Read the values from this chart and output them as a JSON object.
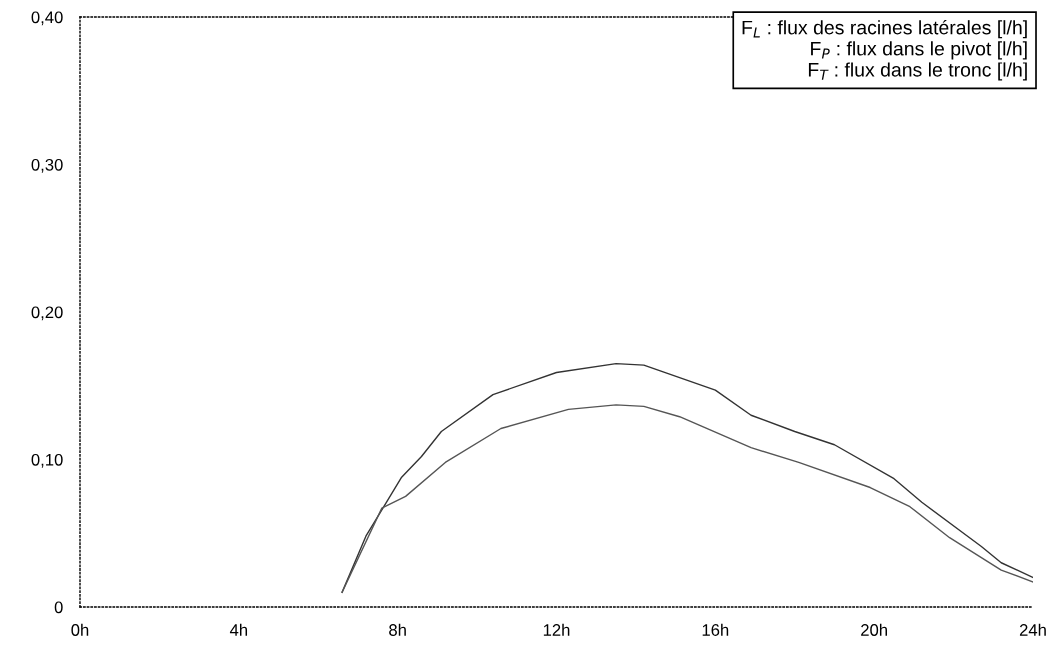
{
  "chart_data": {
    "type": "line",
    "xlim": [
      0,
      24
    ],
    "xticks": [
      {
        "value": 0,
        "label": "0h"
      },
      {
        "value": 4,
        "label": "4h"
      },
      {
        "value": 8,
        "label": "8h"
      },
      {
        "value": 12,
        "label": "12h"
      },
      {
        "value": 16,
        "label": "16h"
      },
      {
        "value": 20,
        "label": "20h"
      },
      {
        "value": 24,
        "label": "24h"
      }
    ],
    "ylim": [
      0,
      0.4
    ],
    "yticks": [
      {
        "value": 0,
        "label": "0"
      },
      {
        "value": 0.1,
        "label": "0,10"
      },
      {
        "value": 0.2,
        "label": "0,20"
      },
      {
        "value": 0.3,
        "label": "0,30"
      },
      {
        "value": 0.4,
        "label": "0,40"
      }
    ],
    "grid": false,
    "line_style": "solid",
    "marker": "none",
    "series": [
      {
        "color": "#333333",
        "x": [
          6.6,
          7.2,
          8.1,
          8.6,
          9.1,
          10.4,
          12,
          13.5,
          14.2,
          16,
          16.9,
          18,
          19,
          20.5,
          21.2,
          22.7,
          23.2,
          24
        ],
        "values": [
          0.01,
          0.048,
          0.088,
          0.102,
          0.119,
          0.144,
          0.159,
          0.165,
          0.164,
          0.147,
          0.13,
          0.119,
          0.11,
          0.087,
          0.071,
          0.041,
          0.03,
          0.02
        ]
      },
      {
        "color": "#555555",
        "x": [
          6.6,
          7.6,
          8.2,
          9.2,
          10.6,
          12.3,
          13.5,
          14.2,
          15.1,
          16.9,
          18.1,
          19.9,
          20.9,
          21.9,
          23.2,
          24
        ],
        "values": [
          0.01,
          0.067,
          0.075,
          0.098,
          0.121,
          0.134,
          0.137,
          0.136,
          0.129,
          0.108,
          0.098,
          0.081,
          0.068,
          0.047,
          0.025,
          0.017
        ]
      }
    ],
    "annotations": [
      "F$_{L}$ : flux des racines latérales [l/h]",
      "F$_{P}$ : flux dans le pivot [l/h]",
      "F$_{T}$ : flux dans le tronc [l/h]"
    ]
  }
}
